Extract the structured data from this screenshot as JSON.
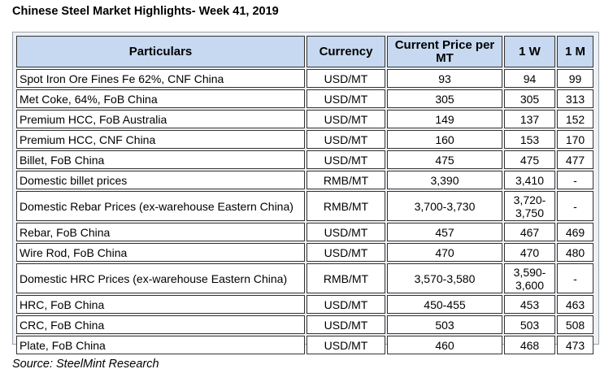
{
  "title": "Chinese Steel Market Highlights- Week 41, 2019",
  "headers": [
    "Particulars",
    "Currency",
    "Current Price per MT",
    "1 W",
    "1 M"
  ],
  "rows": [
    [
      "Spot Iron Ore Fines Fe 62%, CNF China",
      "USD/MT",
      "93",
      "94",
      "99"
    ],
    [
      "Met Coke, 64%, FoB China",
      "USD/MT",
      "305",
      "305",
      "313"
    ],
    [
      "Premium HCC, FoB Australia",
      "USD/MT",
      "149",
      "137",
      "152"
    ],
    [
      "Premium HCC, CNF China",
      "USD/MT",
      "160",
      "153",
      "170"
    ],
    [
      "Billet, FoB China",
      "USD/MT",
      "475",
      "475",
      "477"
    ],
    [
      "Domestic billet prices",
      "RMB/MT",
      "3,390",
      "3,410",
      "-"
    ],
    [
      "Domestic Rebar Prices (ex-warehouse Eastern China)",
      "RMB/MT",
      "3,700-3,730",
      "3,720-3,750",
      "-"
    ],
    [
      "Rebar, FoB China",
      "USD/MT",
      "457",
      "467",
      "469"
    ],
    [
      "Wire Rod, FoB China",
      "USD/MT",
      "470",
      "470",
      "480"
    ],
    [
      "Domestic HRC Prices (ex-warehouse Eastern China)",
      "RMB/MT",
      "3,570-3,580",
      "3,590-3,600",
      "-"
    ],
    [
      "HRC, FoB China",
      "USD/MT",
      "450-455",
      "453",
      "463"
    ],
    [
      "CRC, FoB China",
      "USD/MT",
      "503",
      "503",
      "508"
    ],
    [
      "Plate, FoB China",
      "USD/MT",
      "460",
      "468",
      "473"
    ]
  ],
  "source": "Source: SteelMint Research",
  "colors": {
    "header_bg": "#c6d9f1",
    "frame_bg": "#eef0f3",
    "border": "#333333"
  }
}
